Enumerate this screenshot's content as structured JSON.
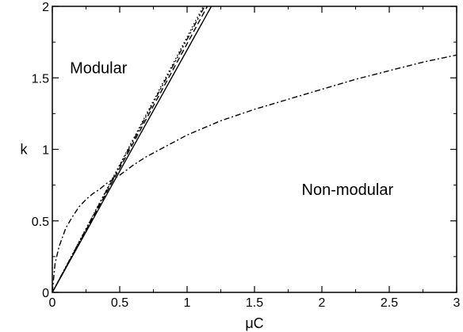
{
  "chart_data": {
    "type": "line",
    "xlabel": "μC",
    "ylabel": "k",
    "xlim": [
      0,
      3
    ],
    "ylim": [
      0,
      2
    ],
    "xticks": [
      0,
      0.5,
      1,
      1.5,
      2,
      2.5,
      3
    ],
    "xtick_labels": [
      "0",
      "0.5",
      "1",
      "1.5",
      "2",
      "2.5",
      "3"
    ],
    "yticks": [
      0,
      0.5,
      1,
      1.5,
      2
    ],
    "ytick_labels": [
      "0",
      "0.5",
      "1",
      "1.5",
      "2"
    ],
    "grid": false,
    "annotations": [
      "Modular",
      "Non-modular"
    ],
    "series": [
      {
        "style": "solid",
        "x": [
          0,
          1.18
        ],
        "y": [
          0,
          2.0
        ]
      },
      {
        "style": "dashed",
        "x": [
          0,
          1.15
        ],
        "y": [
          0,
          2.0
        ]
      },
      {
        "style": "dash-dot-dot",
        "x": [
          0,
          1.13
        ],
        "y": [
          0,
          2.0
        ]
      },
      {
        "style": "dotted",
        "x": [
          0,
          1.12
        ],
        "y": [
          0,
          2.0
        ]
      },
      {
        "style": "dash-dot",
        "x": [
          0,
          0.02,
          0.05,
          0.1,
          0.15,
          0.2,
          0.25,
          0.3,
          0.35,
          0.4,
          0.45,
          0.5,
          0.6,
          0.7,
          0.8,
          1.0,
          1.25,
          1.5,
          1.75,
          2.0,
          2.25,
          2.5,
          2.75,
          3.0
        ],
        "y": [
          0,
          0.2,
          0.32,
          0.45,
          0.53,
          0.6,
          0.65,
          0.69,
          0.72,
          0.76,
          0.79,
          0.82,
          0.89,
          0.95,
          1.0,
          1.1,
          1.2,
          1.28,
          1.35,
          1.42,
          1.49,
          1.55,
          1.61,
          1.66
        ]
      }
    ]
  }
}
